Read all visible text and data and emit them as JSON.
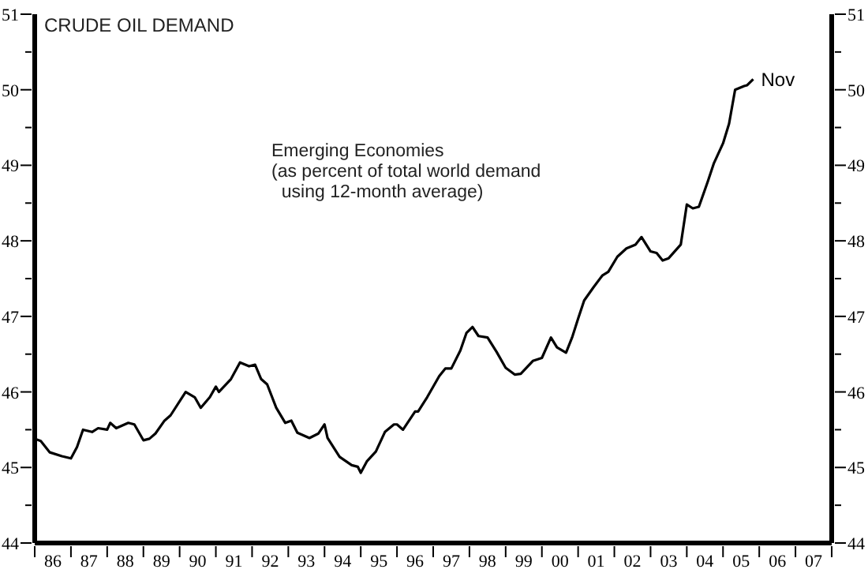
{
  "chart_data": {
    "type": "line",
    "title": "CRUDE OIL DEMAND",
    "annotations": [
      "Emerging Economies\n(as percent of total world demand\n  using 12-month average)",
      {
        "text": "Nov",
        "x": "2005-11",
        "y": 50.14
      }
    ],
    "x": [
      "1986-01",
      "1986-03",
      "1986-06",
      "1986-10",
      "1987-01",
      "1987-03",
      "1987-05",
      "1987-08",
      "1987-10",
      "1988-01",
      "1988-02",
      "1988-04",
      "1988-08",
      "1988-10",
      "1989-01",
      "1989-03",
      "1989-05",
      "1989-08",
      "1989-10",
      "1990-03",
      "1990-06",
      "1990-08",
      "1990-11",
      "1991-01",
      "1991-02",
      "1991-06",
      "1991-09",
      "1991-12",
      "1992-02",
      "1992-04",
      "1992-06",
      "1992-09",
      "1992-12",
      "1993-02",
      "1993-04",
      "1993-08",
      "1993-11",
      "1994-01",
      "1994-02",
      "1994-06",
      "1994-10",
      "1994-12",
      "1995-01",
      "1995-03",
      "1995-06",
      "1995-09",
      "1995-12",
      "1996-01",
      "1996-03",
      "1996-07",
      "1996-08",
      "1996-11",
      "1997-03",
      "1997-05",
      "1997-07",
      "1997-10",
      "1997-12",
      "1998-02",
      "1998-04",
      "1998-07",
      "1998-10",
      "1999-01",
      "1999-04",
      "1999-06",
      "1999-10",
      "2000-01",
      "2000-04",
      "2000-06",
      "2000-09",
      "2000-11",
      "2001-01",
      "2001-03",
      "2001-06",
      "2001-09",
      "2001-11",
      "2002-02",
      "2002-05",
      "2002-08",
      "2002-10",
      "2003-01",
      "2003-03",
      "2003-05",
      "2003-07",
      "2003-11",
      "2004-01",
      "2004-03",
      "2004-05",
      "2004-08",
      "2004-10",
      "2005-01",
      "2005-03",
      "2005-05",
      "2005-08",
      "2005-09",
      "2005-10",
      "2005-11"
    ],
    "series": [
      {
        "color": "#000000",
        "values": [
          45.38,
          45.35,
          45.2,
          45.15,
          45.12,
          45.27,
          45.5,
          45.47,
          45.52,
          45.5,
          45.59,
          45.52,
          45.59,
          45.57,
          45.36,
          45.38,
          45.45,
          45.62,
          45.69,
          46.0,
          45.93,
          45.79,
          45.93,
          46.07,
          46.0,
          46.17,
          46.39,
          46.34,
          46.36,
          46.17,
          46.1,
          45.79,
          45.59,
          45.62,
          45.46,
          45.39,
          45.45,
          45.57,
          45.39,
          45.14,
          45.03,
          45.01,
          44.93,
          45.08,
          45.21,
          45.47,
          45.57,
          45.57,
          45.5,
          45.74,
          45.74,
          45.93,
          46.21,
          46.31,
          46.31,
          46.55,
          46.78,
          46.86,
          46.74,
          46.72,
          46.53,
          46.32,
          46.23,
          46.24,
          46.41,
          46.45,
          46.72,
          46.59,
          46.52,
          46.72,
          46.97,
          47.21,
          47.38,
          47.54,
          47.59,
          47.79,
          47.9,
          47.95,
          48.05,
          47.86,
          47.84,
          47.74,
          47.77,
          47.95,
          48.48,
          48.43,
          48.45,
          48.79,
          49.03,
          49.29,
          49.55,
          50.0,
          50.05,
          50.06,
          50.1,
          50.14
        ]
      }
    ],
    "xlim": [
      "1986-01",
      "2008-01"
    ],
    "xticks": [
      {
        "value": "1986-01",
        "label": null
      },
      {
        "value": "1986-07",
        "label": "86"
      },
      {
        "value": "1987-01",
        "label": null
      },
      {
        "value": "1987-07",
        "label": "87"
      },
      {
        "value": "1988-01",
        "label": null
      },
      {
        "value": "1988-07",
        "label": "88"
      },
      {
        "value": "1989-01",
        "label": null
      },
      {
        "value": "1989-07",
        "label": "89"
      },
      {
        "value": "1990-01",
        "label": null
      },
      {
        "value": "1990-07",
        "label": "90"
      },
      {
        "value": "1991-01",
        "label": null
      },
      {
        "value": "1991-07",
        "label": "91"
      },
      {
        "value": "1992-01",
        "label": null
      },
      {
        "value": "1992-07",
        "label": "92"
      },
      {
        "value": "1993-01",
        "label": null
      },
      {
        "value": "1993-07",
        "label": "93"
      },
      {
        "value": "1994-01",
        "label": null
      },
      {
        "value": "1994-07",
        "label": "94"
      },
      {
        "value": "1995-01",
        "label": null
      },
      {
        "value": "1995-07",
        "label": "95"
      },
      {
        "value": "1996-01",
        "label": null
      },
      {
        "value": "1996-07",
        "label": "96"
      },
      {
        "value": "1997-01",
        "label": null
      },
      {
        "value": "1997-07",
        "label": "97"
      },
      {
        "value": "1998-01",
        "label": null
      },
      {
        "value": "1998-07",
        "label": "98"
      },
      {
        "value": "1999-01",
        "label": null
      },
      {
        "value": "1999-07",
        "label": "99"
      },
      {
        "value": "2000-01",
        "label": null
      },
      {
        "value": "2000-07",
        "label": "00"
      },
      {
        "value": "2001-01",
        "label": null
      },
      {
        "value": "2001-07",
        "label": "01"
      },
      {
        "value": "2002-01",
        "label": null
      },
      {
        "value": "2002-07",
        "label": "02"
      },
      {
        "value": "2003-01",
        "label": null
      },
      {
        "value": "2003-07",
        "label": "03"
      },
      {
        "value": "2004-01",
        "label": null
      },
      {
        "value": "2004-07",
        "label": "04"
      },
      {
        "value": "2005-01",
        "label": null
      },
      {
        "value": "2005-07",
        "label": "05"
      },
      {
        "value": "2006-01",
        "label": null
      },
      {
        "value": "2006-07",
        "label": "06"
      },
      {
        "value": "2007-01",
        "label": null
      },
      {
        "value": "2007-07",
        "label": "07"
      },
      {
        "value": "2008-01",
        "label": null
      }
    ],
    "ylim": [
      44,
      51
    ],
    "yticks": [
      44,
      {
        "value": 44.5,
        "label": null
      },
      45,
      {
        "value": 45.5,
        "label": null
      },
      46,
      {
        "value": 46.5,
        "label": null
      },
      47,
      {
        "value": 47.5,
        "label": null
      },
      48,
      {
        "value": 48.5,
        "label": null
      },
      49,
      {
        "value": 49.5,
        "label": null
      },
      50,
      {
        "value": 50.5,
        "label": null
      },
      51
    ],
    "y2lim": [
      44,
      51
    ],
    "y2ticks": [
      44,
      {
        "value": 44.5,
        "label": null
      },
      45,
      {
        "value": 45.5,
        "label": null
      },
      46,
      {
        "value": 46.5,
        "label": null
      },
      47,
      {
        "value": 47.5,
        "label": null
      },
      48,
      {
        "value": 48.5,
        "label": null
      },
      49,
      {
        "value": 49.5,
        "label": null
      },
      50,
      {
        "value": 50.5,
        "label": null
      },
      51
    ],
    "grid": false,
    "legend": false,
    "marker": "none",
    "line_style": "solid"
  }
}
